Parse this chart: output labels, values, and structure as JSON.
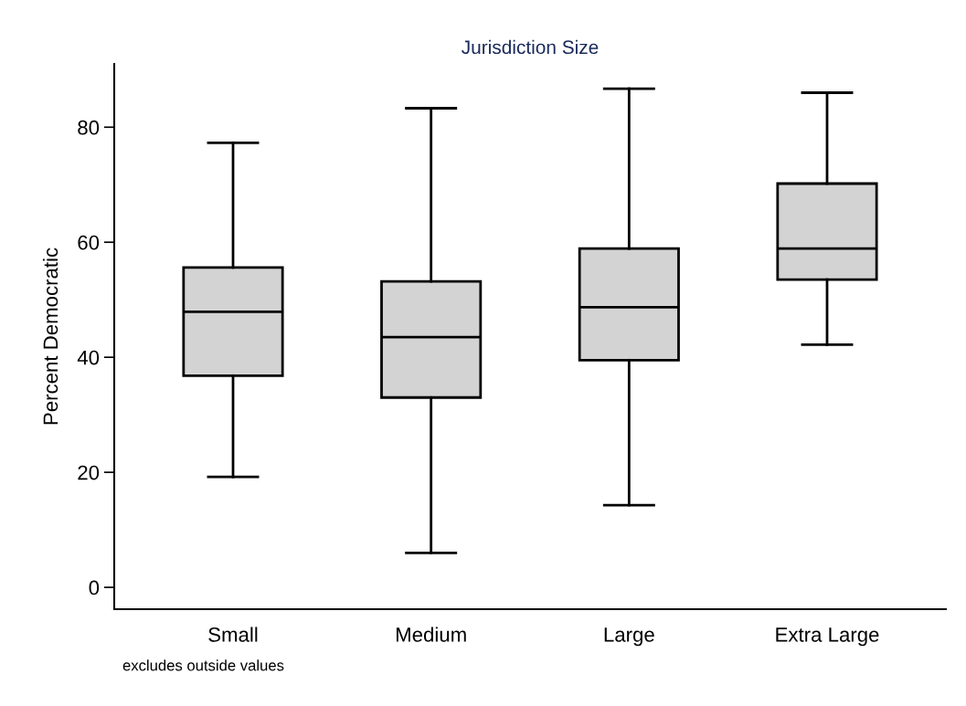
{
  "chart_data": {
    "type": "box",
    "title": "Jurisdiction Size",
    "ylabel": "Percent Democratic",
    "categories": [
      "Small",
      "Medium",
      "Large",
      "Extra Large"
    ],
    "boxes": [
      {
        "low": 19.2,
        "q1": 36.8,
        "median": 47.9,
        "q3": 55.6,
        "high": 77.3
      },
      {
        "low": 6.0,
        "q1": 33.0,
        "median": 43.5,
        "q3": 53.2,
        "high": 83.3
      },
      {
        "low": 14.3,
        "q1": 39.5,
        "median": 48.7,
        "q3": 58.9,
        "high": 86.7
      },
      {
        "low": 42.2,
        "q1": 53.5,
        "median": 58.9,
        "q3": 70.2,
        "high": 86.0
      }
    ],
    "color": "#d3d3d3",
    "ylim": [
      -3.8,
      91
    ],
    "yticks": [
      0,
      20,
      40,
      60,
      80
    ],
    "grid": false,
    "annotations": [
      "excludes outside values"
    ]
  }
}
